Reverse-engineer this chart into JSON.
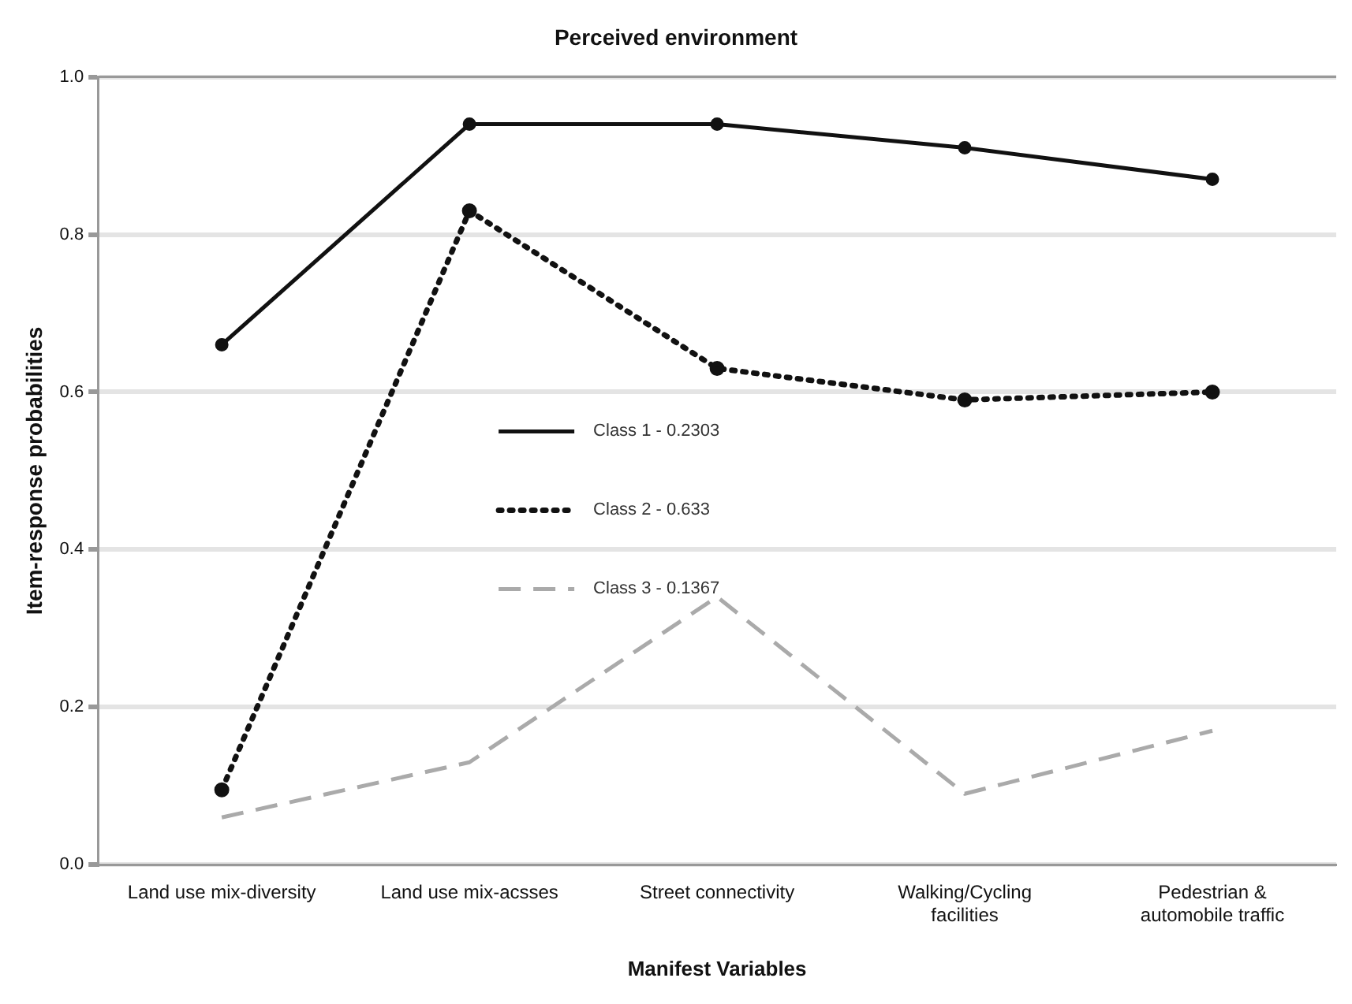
{
  "chart_data": {
    "type": "line",
    "title": "Perceived environment",
    "xlabel": "Manifest Variables",
    "ylabel": "Item-response probabilities",
    "categories": [
      "Land use mix-diversity",
      "Land use mix-acsses",
      "Street connectivity",
      "Walking/Cycling facilities",
      "Pedestrian & automobile traffic"
    ],
    "series": [
      {
        "name": "Class 1 - 0.2303",
        "color": "#111111",
        "values": [
          0.66,
          0.94,
          0.94,
          0.91,
          0.87
        ],
        "line_style": "solid",
        "marker": "circle"
      },
      {
        "name": "Class 2 - 0.633",
        "color": "#111111",
        "values": [
          0.095,
          0.83,
          0.63,
          0.59,
          0.6
        ],
        "line_style": "dotted",
        "marker": "circle"
      },
      {
        "name": "Class 3 - 0.1367",
        "color": "#aaaaaa",
        "values": [
          0.06,
          0.13,
          0.34,
          0.09,
          0.17
        ],
        "line_style": "dashed",
        "marker": "none"
      }
    ],
    "ylim": [
      0,
      1
    ],
    "yticks": [
      {
        "value": 0,
        "label": "0.0"
      },
      0.2,
      0.4,
      0.6,
      0.8,
      {
        "value": 1,
        "label": "1.0"
      }
    ],
    "grid": "y",
    "legend": "center"
  }
}
